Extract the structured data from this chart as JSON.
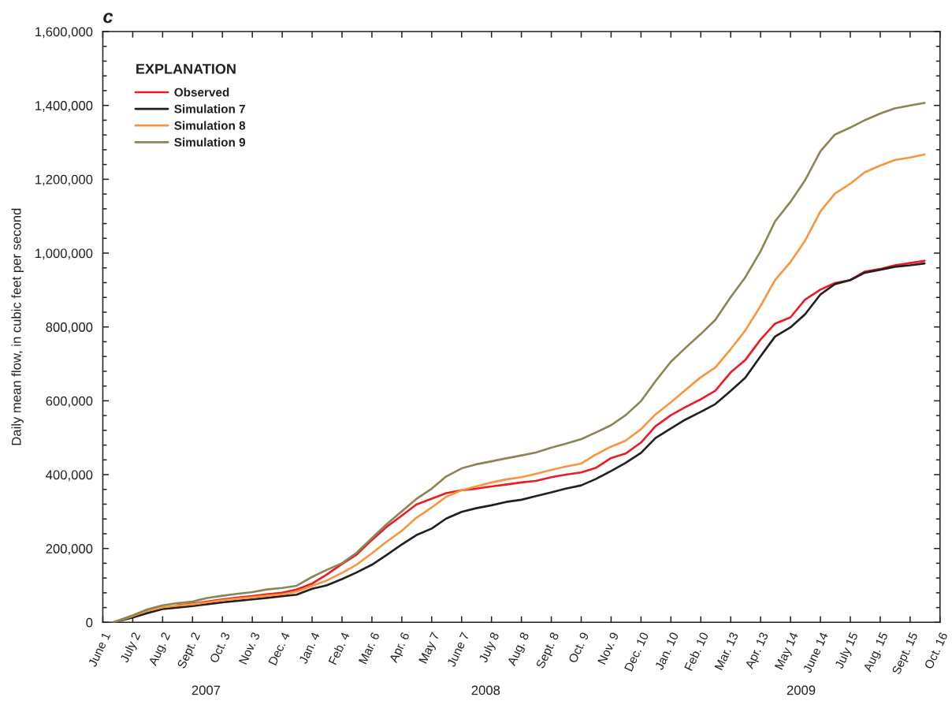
{
  "chart_data": {
    "type": "line",
    "title": "c",
    "ylabel": "Daily mean flow, in cubic feet per second",
    "legend": "top left",
    "legend_title": "EXPLANATION",
    "x": [
      "2007-06-12",
      "2007-07-02",
      "2007-07-17",
      "2007-08-02",
      "2007-08-17",
      "2007-09-02",
      "2007-09-17",
      "2007-10-03",
      "2007-10-18",
      "2007-11-03",
      "2007-11-18",
      "2007-12-04",
      "2007-12-19",
      "2008-01-04",
      "2008-01-19",
      "2008-02-04",
      "2008-02-19",
      "2008-03-06",
      "2008-03-21",
      "2008-04-06",
      "2008-04-21",
      "2008-05-07",
      "2008-05-22",
      "2008-06-07",
      "2008-06-22",
      "2008-07-08",
      "2008-07-23",
      "2008-08-08",
      "2008-08-23",
      "2008-09-08",
      "2008-09-23",
      "2008-10-09",
      "2008-10-24",
      "2008-11-09",
      "2008-11-24",
      "2008-12-10",
      "2008-12-25",
      "2009-01-10",
      "2009-01-25",
      "2009-02-10",
      "2009-02-25",
      "2009-03-13",
      "2009-03-28",
      "2009-04-13",
      "2009-04-28",
      "2009-05-14",
      "2009-05-29",
      "2009-06-14",
      "2009-06-29",
      "2009-07-15",
      "2009-07-30",
      "2009-08-15",
      "2009-08-30",
      "2009-09-15",
      "2009-09-30"
    ],
    "series": [
      {
        "name": "Observed",
        "color": "#ed1c24",
        "values": [
          null,
          null,
          null,
          null,
          46000,
          51000,
          56000,
          62000,
          67000,
          71000,
          76000,
          80000,
          89000,
          105000,
          129000,
          158000,
          183000,
          223000,
          258000,
          289000,
          319000,
          335000,
          350000,
          358000,
          362000,
          368000,
          373000,
          379000,
          383000,
          393000,
          400000,
          406000,
          418000,
          445000,
          457000,
          487000,
          531000,
          561000,
          583000,
          604000,
          627000,
          677000,
          710000,
          766000,
          809000,
          826000,
          874000,
          901000,
          919000,
          927000,
          950000,
          957000,
          967000,
          973000,
          979000
        ]
      },
      {
        "name": "Simulation 7",
        "color": "#231f20",
        "values": [
          0,
          13000,
          25000,
          36000,
          40000,
          44000,
          49000,
          54000,
          58000,
          62000,
          66000,
          71000,
          75000,
          91000,
          100000,
          117000,
          135000,
          156000,
          182000,
          211000,
          236000,
          254000,
          281000,
          299000,
          309000,
          317000,
          326000,
          332000,
          342000,
          352000,
          362000,
          371000,
          388000,
          410000,
          432000,
          459000,
          499000,
          525000,
          549000,
          570000,
          591000,
          627000,
          662000,
          721000,
          774000,
          799000,
          834000,
          888000,
          916000,
          927000,
          947000,
          955000,
          963000,
          967000,
          972000
        ]
      },
      {
        "name": "Simulation 8",
        "color": "#f7963e",
        "values": [
          0,
          17000,
          31000,
          41000,
          45000,
          49000,
          54000,
          60000,
          64000,
          68000,
          72000,
          76000,
          83000,
          99000,
          113000,
          134000,
          156000,
          187000,
          218000,
          248000,
          283000,
          311000,
          340000,
          358000,
          368000,
          379000,
          387000,
          393000,
          402000,
          413000,
          422000,
          430000,
          454000,
          476000,
          492000,
          523000,
          563000,
          596000,
          629000,
          664000,
          690000,
          740000,
          790000,
          857000,
          927000,
          976000,
          1033000,
          1113000,
          1161000,
          1188000,
          1219000,
          1237000,
          1252000,
          1259000,
          1267000
        ]
      },
      {
        "name": "Simulation 9",
        "color": "#8b8651",
        "values": [
          0,
          19000,
          35000,
          46000,
          52000,
          56000,
          66000,
          72000,
          77000,
          82000,
          89000,
          93000,
          99000,
          123000,
          142000,
          160000,
          188000,
          228000,
          265000,
          301000,
          334000,
          362000,
          395000,
          417000,
          428000,
          436000,
          444000,
          452000,
          460000,
          473000,
          484000,
          496000,
          514000,
          534000,
          561000,
          599000,
          653000,
          706000,
          743000,
          781000,
          819000,
          881000,
          934000,
          1005000,
          1086000,
          1139000,
          1197000,
          1276000,
          1321000,
          1340000,
          1360000,
          1378000,
          1392000,
          1400000,
          1407000
        ]
      }
    ],
    "xlim": [
      "2007-06-01",
      "2009-10-16"
    ],
    "xticks": [
      {
        "value": "2007-06-01",
        "label": "June 1"
      },
      {
        "value": "2007-07-02",
        "label": "July 2"
      },
      {
        "value": "2007-08-02",
        "label": "Aug. 2"
      },
      {
        "value": "2007-09-02",
        "label": "Sept. 2"
      },
      {
        "value": "2007-10-03",
        "label": "Oct. 3"
      },
      {
        "value": "2007-11-03",
        "label": "Nov. 3"
      },
      {
        "value": "2007-12-04",
        "label": "Dec. 4"
      },
      {
        "value": "2008-01-04",
        "label": "Jan. 4"
      },
      {
        "value": "2008-02-04",
        "label": "Feb. 4"
      },
      {
        "value": "2008-03-06",
        "label": "Mar. 6"
      },
      {
        "value": "2008-04-06",
        "label": "Apr. 6"
      },
      {
        "value": "2008-05-07",
        "label": "May 7"
      },
      {
        "value": "2008-06-07",
        "label": "June 7"
      },
      {
        "value": "2008-07-08",
        "label": "July 8"
      },
      {
        "value": "2008-08-08",
        "label": "Aug. 8"
      },
      {
        "value": "2008-09-08",
        "label": "Sept. 8"
      },
      {
        "value": "2008-10-09",
        "label": "Oct. 9"
      },
      {
        "value": "2008-11-09",
        "label": "Nov. 9"
      },
      {
        "value": "2008-12-10",
        "label": "Dec. 10"
      },
      {
        "value": "2009-01-10",
        "label": "Jan. 10"
      },
      {
        "value": "2009-02-10",
        "label": "Feb. 10"
      },
      {
        "value": "2009-03-13",
        "label": "Mar. 13"
      },
      {
        "value": "2009-04-13",
        "label": "Apr. 13"
      },
      {
        "value": "2009-05-14",
        "label": "May 14"
      },
      {
        "value": "2009-06-14",
        "label": "June 14"
      },
      {
        "value": "2009-07-15",
        "label": "July 15"
      },
      {
        "value": "2009-08-15",
        "label": "Aug. 15"
      },
      {
        "value": "2009-09-15",
        "label": "Sept. 15"
      },
      {
        "value": "2009-10-16",
        "label": "Oct. 16"
      }
    ],
    "ylim": [
      0,
      1600000
    ],
    "yticks": [
      0,
      {
        "value": 40000,
        "label": null
      },
      {
        "value": 80000,
        "label": null
      },
      {
        "value": 120000,
        "label": null
      },
      {
        "value": 160000,
        "label": null
      },
      {
        "value": 200000,
        "label": "200,000"
      },
      {
        "value": 240000,
        "label": null
      },
      {
        "value": 280000,
        "label": null
      },
      {
        "value": 320000,
        "label": null
      },
      {
        "value": 360000,
        "label": null
      },
      {
        "value": 400000,
        "label": "400,000"
      },
      {
        "value": 440000,
        "label": null
      },
      {
        "value": 480000,
        "label": null
      },
      {
        "value": 520000,
        "label": null
      },
      {
        "value": 560000,
        "label": null
      },
      {
        "value": 600000,
        "label": "600,000"
      },
      {
        "value": 640000,
        "label": null
      },
      {
        "value": 680000,
        "label": null
      },
      {
        "value": 720000,
        "label": null
      },
      {
        "value": 760000,
        "label": null
      },
      {
        "value": 800000,
        "label": "800,000"
      },
      {
        "value": 840000,
        "label": null
      },
      {
        "value": 880000,
        "label": null
      },
      {
        "value": 920000,
        "label": null
      },
      {
        "value": 960000,
        "label": null
      },
      {
        "value": 1000000,
        "label": "1,000,000"
      },
      {
        "value": 1040000,
        "label": null
      },
      {
        "value": 1080000,
        "label": null
      },
      {
        "value": 1120000,
        "label": null
      },
      {
        "value": 1160000,
        "label": null
      },
      {
        "value": 1200000,
        "label": "1,200,000"
      },
      {
        "value": 1240000,
        "label": null
      },
      {
        "value": 1280000,
        "label": null
      },
      {
        "value": 1320000,
        "label": null
      },
      {
        "value": 1360000,
        "label": null
      },
      {
        "value": 1400000,
        "label": "1,400,000"
      },
      {
        "value": 1440000,
        "label": null
      },
      {
        "value": 1480000,
        "label": null
      },
      {
        "value": 1520000,
        "label": null
      },
      {
        "value": 1560000,
        "label": null
      },
      {
        "value": 1600000,
        "label": "1,600,000"
      }
    ],
    "annotations": [
      "2007",
      "2008",
      "2009"
    ]
  }
}
